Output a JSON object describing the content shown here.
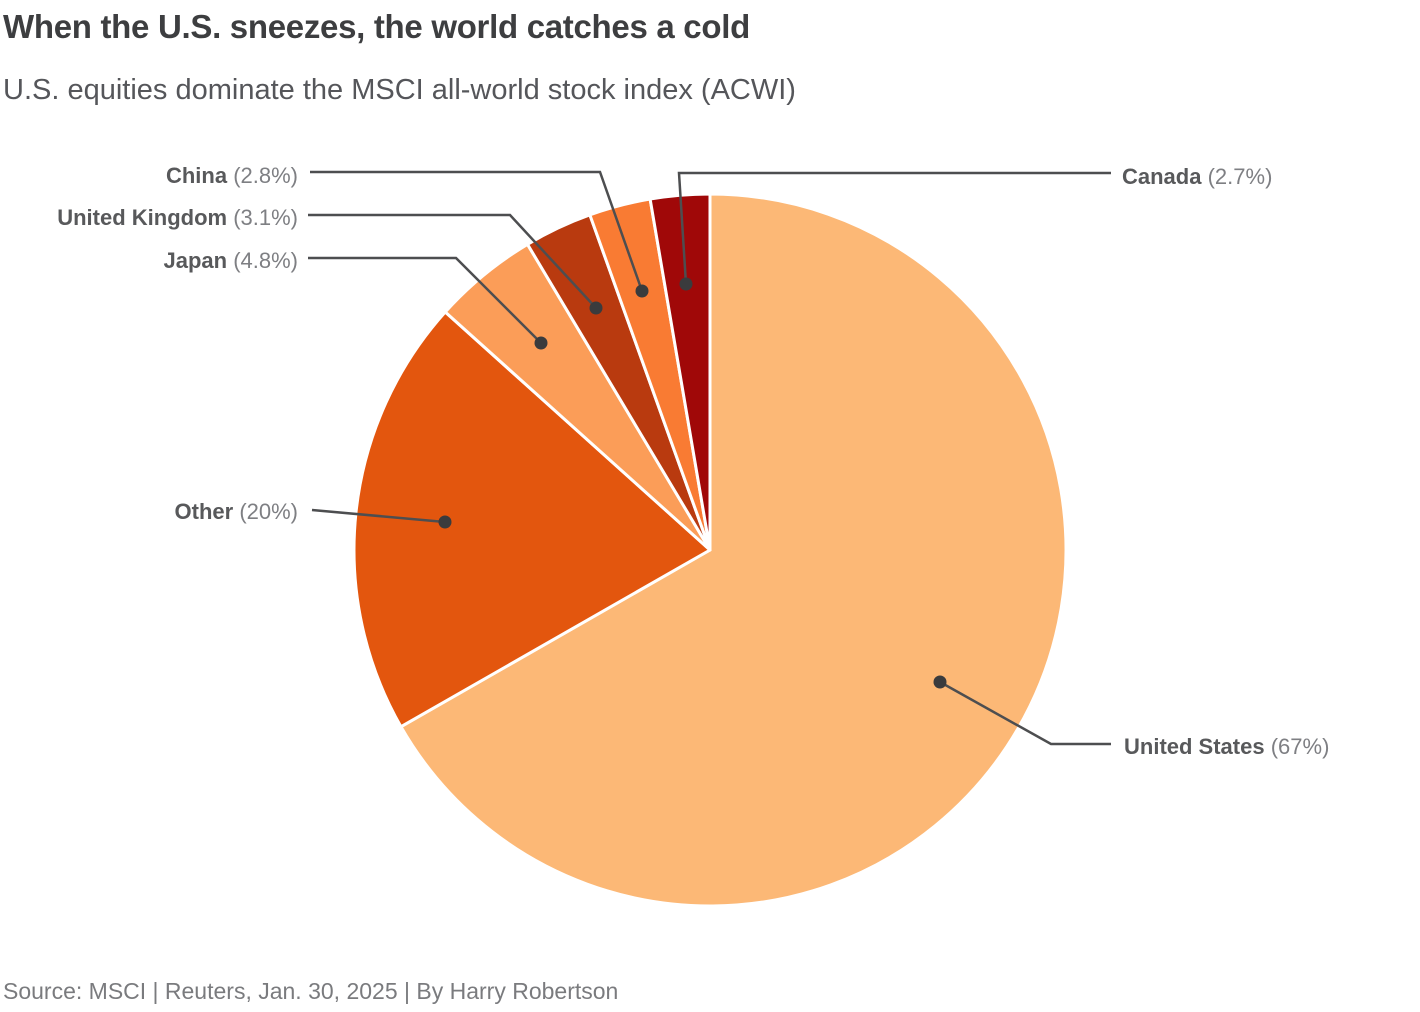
{
  "header": {
    "title": "When the U.S. sneezes, the world catches a cold",
    "subtitle": "U.S. equities dominate the MSCI all-world stock index (ACWI)"
  },
  "footer": {
    "source": "Source: MSCI | Reuters, Jan. 30, 2025 | By Harry Robertson"
  },
  "chart_data": {
    "type": "pie",
    "title": "When the U.S. sneezes, the world catches a cold",
    "subtitle": "U.S. equities dominate the MSCI all-world stock index (ACWI)",
    "source": "Source: MSCI | Reuters, Jan. 30, 2025 | By Harry Robertson",
    "unit": "%",
    "start_angle_deg": 0,
    "direction": "clockwise",
    "legend_position": "none",
    "label_style": "callout-leader-lines",
    "slices": [
      {
        "name": "United States",
        "value": 67,
        "pct_display": "(67%)",
        "color": "#FCB876"
      },
      {
        "name": "Other",
        "value": 20,
        "pct_display": "(20%)",
        "color": "#E3560E"
      },
      {
        "name": "Japan",
        "value": 4.8,
        "pct_display": "(4.8%)",
        "color": "#FB9D58"
      },
      {
        "name": "United Kingdom",
        "value": 3.1,
        "pct_display": "(3.1%)",
        "color": "#B93A0F"
      },
      {
        "name": "China",
        "value": 2.8,
        "pct_display": "(2.8%)",
        "color": "#F97B33"
      },
      {
        "name": "Canada",
        "value": 2.7,
        "pct_display": "(2.7%)",
        "color": "#A00808"
      }
    ]
  }
}
